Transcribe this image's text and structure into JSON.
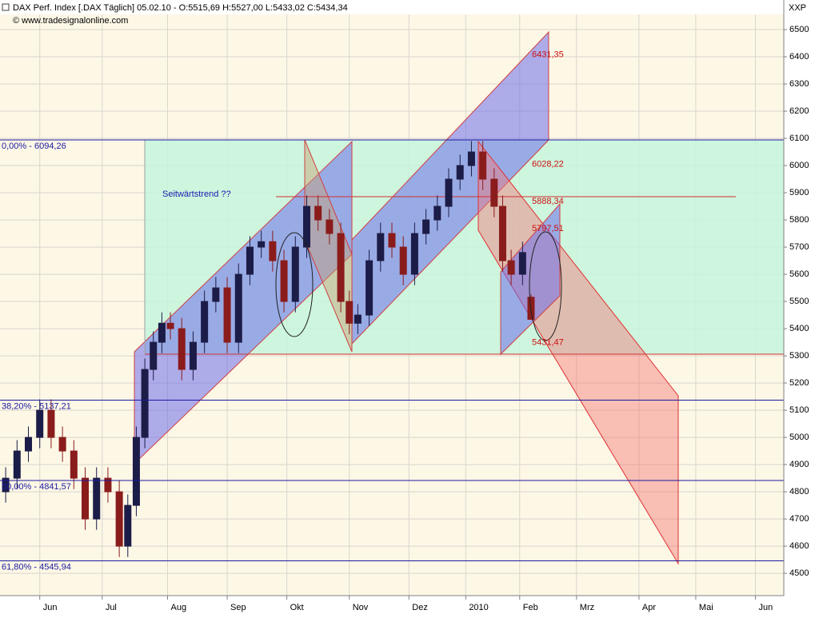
{
  "chart_data": {
    "type": "candlestick",
    "title": "DAX Perf. Index [.DAX  Täglich] 05.02.10 - O:5515,69 H:5527,00 L:5433,02 C:5434,34",
    "subtitle": "© www.tradesignalonline.com",
    "y_axis_label": "XXP",
    "annotation_text": "Seitwärtstrend ??",
    "x": [
      -12,
      -8,
      -4,
      0,
      4,
      8,
      12,
      16,
      20,
      24,
      28,
      31,
      34,
      37,
      40,
      43,
      46,
      50,
      54,
      58,
      62,
      66,
      70,
      74,
      78,
      82,
      86,
      90,
      94,
      98,
      102,
      106,
      109,
      112,
      116,
      120,
      124,
      128,
      132,
      136,
      140,
      144,
      148,
      152,
      156,
      160,
      163,
      166,
      170,
      173
    ],
    "open": [
      4800,
      4850,
      4950,
      5000,
      5100,
      5000,
      4950,
      4850,
      4700,
      4850,
      4800,
      4600,
      4750,
      5000,
      5250,
      5350,
      5420,
      5400,
      5250,
      5350,
      5500,
      5550,
      5350,
      5600,
      5700,
      5720,
      5650,
      5500,
      5700,
      5850,
      5800,
      5750,
      5500,
      5420,
      5450,
      5650,
      5750,
      5700,
      5600,
      5750,
      5800,
      5850,
      5950,
      6000,
      6050,
      5950,
      5850,
      5650,
      5600,
      5515.69
    ],
    "high": [
      4890,
      4990,
      5040,
      5140,
      5140,
      5040,
      4990,
      4890,
      4890,
      4890,
      4840,
      4790,
      5040,
      5290,
      5390,
      5460,
      5460,
      5440,
      5390,
      5540,
      5590,
      5590,
      5640,
      5740,
      5760,
      5760,
      5690,
      5740,
      5890,
      5890,
      5840,
      5790,
      5540,
      5490,
      5690,
      5790,
      5790,
      5740,
      5790,
      5840,
      5890,
      5990,
      6040,
      6090,
      6090,
      5990,
      5890,
      5690,
      5720,
      5527
    ],
    "low": [
      4760,
      4810,
      4910,
      4960,
      4960,
      4910,
      4810,
      4660,
      4660,
      4760,
      4560,
      4560,
      4710,
      4960,
      5210,
      5310,
      5360,
      5210,
      5210,
      5310,
      5460,
      5310,
      5310,
      5560,
      5660,
      5610,
      5460,
      5460,
      5660,
      5760,
      5710,
      5460,
      5380,
      5380,
      5410,
      5610,
      5660,
      5560,
      5560,
      5710,
      5760,
      5810,
      5910,
      5960,
      5910,
      5810,
      5610,
      5560,
      5560,
      5433.02
    ],
    "close": [
      4850,
      4950,
      5000,
      5100,
      5000,
      4950,
      4850,
      4700,
      4850,
      4800,
      4600,
      4750,
      5000,
      5250,
      5350,
      5420,
      5400,
      5250,
      5350,
      5500,
      5550,
      5350,
      5600,
      5700,
      5720,
      5650,
      5500,
      5700,
      5850,
      5800,
      5750,
      5500,
      5420,
      5450,
      5650,
      5750,
      5700,
      5600,
      5750,
      5800,
      5850,
      5950,
      6000,
      6050,
      5950,
      5850,
      5650,
      5600,
      5680,
      5434.34
    ],
    "up_color": "#1c1c48",
    "down_color": "#8a1c1c",
    "xlim": [
      -14,
      262
    ],
    "ylim": [
      4418,
      6556
    ],
    "xticks": [
      {
        "value": 0,
        "label": "Jun"
      },
      {
        "value": 22,
        "label": "Jul"
      },
      {
        "value": 45,
        "label": "Aug"
      },
      {
        "value": 66,
        "label": "Sep"
      },
      {
        "value": 87,
        "label": "Okt"
      },
      {
        "value": 109,
        "label": "Nov"
      },
      {
        "value": 130,
        "label": "Dez"
      },
      {
        "value": 150,
        "label": "2010"
      },
      {
        "value": 169,
        "label": "Feb"
      },
      {
        "value": 189,
        "label": "Mrz"
      },
      {
        "value": 211,
        "label": "Apr"
      },
      {
        "value": 231,
        "label": "Mai"
      },
      {
        "value": 252,
        "label": "Jun"
      }
    ],
    "yticks": [
      4500,
      4600,
      4700,
      4800,
      4900,
      5000,
      5100,
      5200,
      5300,
      5400,
      5500,
      5600,
      5700,
      5800,
      5900,
      6000,
      6100,
      6200,
      6300,
      6400,
      6500
    ],
    "grid": true,
    "fib_levels": [
      {
        "value": 6094.26,
        "label": "0,00% - 6094,26"
      },
      {
        "value": 5137.21,
        "label": "38,20% - 5137,21"
      },
      {
        "value": 4841.57,
        "label": "50,00% - 4841,57"
      },
      {
        "value": 4545.94,
        "label": "61,80% - 4545,94"
      }
    ],
    "fib_color": "#1a1aa0",
    "price_labels": [
      {
        "value": 6431.35,
        "label": "6431,35"
      },
      {
        "value": 6028.22,
        "label": "6028,22"
      },
      {
        "value": 5888.34,
        "label": "5888,34"
      },
      {
        "value": 5797.51,
        "label": "5797,51"
      },
      {
        "value": 5431.47,
        "label": "5431,47"
      }
    ],
    "price_label_color": "#cc1010"
  }
}
